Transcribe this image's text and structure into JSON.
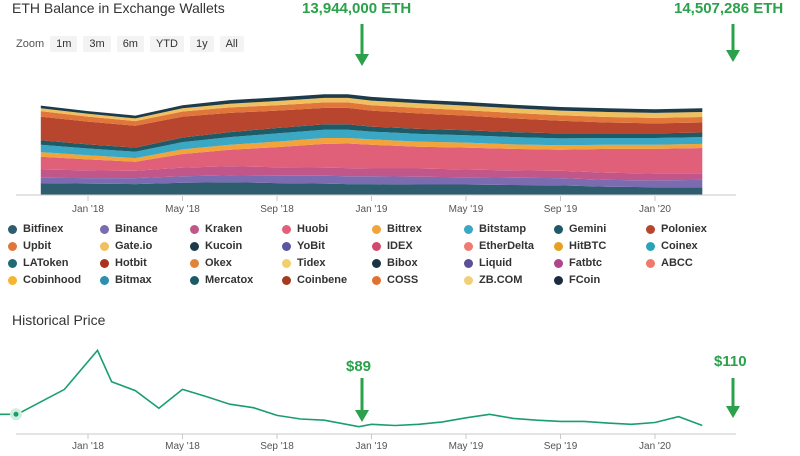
{
  "title": "ETH Balance in Exchange Wallets",
  "zoom": {
    "label": "Zoom",
    "options": [
      "1m",
      "3m",
      "6m",
      "YTD",
      "1y",
      "All"
    ]
  },
  "callouts": {
    "balance_low": "13,944,000 ETH",
    "balance_high": "14,507,286 ETH",
    "price_low": "$89",
    "price_high": "$110"
  },
  "colors": {
    "callout_green": "#2aa14a",
    "price_line": "#1a9e6e"
  },
  "legend": [
    {
      "name": "Bitfinex",
      "color": "#2e5d70"
    },
    {
      "name": "Binance",
      "color": "#7b6bb0"
    },
    {
      "name": "Kraken",
      "color": "#c0568a"
    },
    {
      "name": "Huobi",
      "color": "#e0607a"
    },
    {
      "name": "Bittrex",
      "color": "#f2a33a"
    },
    {
      "name": "Bitstamp",
      "color": "#3aa7c4"
    },
    {
      "name": "Gemini",
      "color": "#1f5b66"
    },
    {
      "name": "Poloniex",
      "color": "#b8462e"
    },
    {
      "name": "Upbit",
      "color": "#e0763a"
    },
    {
      "name": "Gate.io",
      "color": "#f0c060"
    },
    {
      "name": "Kucoin",
      "color": "#1d3b4a"
    },
    {
      "name": "YoBit",
      "color": "#5a56a0"
    },
    {
      "name": "IDEX",
      "color": "#d04a6a"
    },
    {
      "name": "EtherDelta",
      "color": "#ee7a70"
    },
    {
      "name": "HitBTC",
      "color": "#e8a020"
    },
    {
      "name": "Coinex",
      "color": "#2aa3b8"
    },
    {
      "name": "LAToken",
      "color": "#1f6b73"
    },
    {
      "name": "Hotbit",
      "color": "#a8361c"
    },
    {
      "name": "Okex",
      "color": "#e0843a"
    },
    {
      "name": "Tidex",
      "color": "#f2cf6a"
    },
    {
      "name": "Bibox",
      "color": "#1b3346"
    },
    {
      "name": "Liquid",
      "color": "#5b4f9a"
    },
    {
      "name": "Fatbtc",
      "color": "#b0468a"
    },
    {
      "name": "ABCC",
      "color": "#f07a6a"
    },
    {
      "name": "Cobinhood",
      "color": "#f5b52e"
    },
    {
      "name": "Bitmax",
      "color": "#2a8fb0"
    },
    {
      "name": "Mercatox",
      "color": "#1d5a68"
    },
    {
      "name": "Coinbene",
      "color": "#a43a22"
    },
    {
      "name": "COSS",
      "color": "#e4702e"
    },
    {
      "name": "ZB.COM",
      "color": "#f2d07a"
    },
    {
      "name": "FCoin",
      "color": "#1a2d40"
    }
  ],
  "history": {
    "title": "Historical Price"
  },
  "chart_data": [
    {
      "type": "area",
      "title": "ETH Balance in Exchange Wallets",
      "x_ticks": [
        "Jan '18",
        "May '18",
        "Sep '18",
        "Jan '19",
        "May '19",
        "Sep '19",
        "Jan '20"
      ],
      "x": [
        "2017-11",
        "2018-01",
        "2018-03",
        "2018-05",
        "2018-07",
        "2018-09",
        "2018-11",
        "2018-12",
        "2019-01",
        "2019-03",
        "2019-05",
        "2019-07",
        "2019-09",
        "2019-11",
        "2020-01",
        "2020-03"
      ],
      "series": [
        {
          "name": "Bitfinex",
          "values": [
            1.3,
            1.25,
            1.2,
            1.35,
            1.4,
            1.3,
            1.25,
            1.2,
            1.2,
            1.15,
            1.15,
            1.1,
            1.05,
            0.9,
            0.85,
            0.85
          ]
        },
        {
          "name": "Binance",
          "values": [
            0.6,
            0.6,
            0.65,
            0.7,
            0.75,
            0.8,
            0.85,
            0.85,
            0.85,
            0.85,
            0.8,
            0.8,
            0.8,
            0.75,
            0.75,
            0.8
          ]
        },
        {
          "name": "Kraken",
          "values": [
            0.9,
            0.85,
            0.8,
            0.95,
            1.0,
            0.95,
            0.9,
            0.9,
            0.85,
            0.9,
            0.85,
            0.8,
            0.8,
            0.8,
            0.75,
            0.7
          ]
        },
        {
          "name": "Huobi",
          "values": [
            1.4,
            1.2,
            1.0,
            1.5,
            1.8,
            2.2,
            2.6,
            2.7,
            2.6,
            2.4,
            2.4,
            2.35,
            2.3,
            2.6,
            2.7,
            2.8
          ]
        },
        {
          "name": "Bittrex",
          "values": [
            0.5,
            0.45,
            0.4,
            0.5,
            0.55,
            0.6,
            0.65,
            0.6,
            0.6,
            0.55,
            0.55,
            0.5,
            0.5,
            0.45,
            0.45,
            0.45
          ]
        },
        {
          "name": "Bitstamp",
          "values": [
            0.8,
            0.75,
            0.7,
            0.8,
            0.85,
            0.9,
            0.9,
            0.9,
            0.85,
            0.85,
            0.8,
            0.8,
            0.75,
            0.75,
            0.75,
            0.75
          ]
        },
        {
          "name": "Gemini",
          "values": [
            0.5,
            0.45,
            0.45,
            0.5,
            0.55,
            0.6,
            0.6,
            0.6,
            0.55,
            0.55,
            0.55,
            0.55,
            0.55,
            0.5,
            0.5,
            0.5
          ]
        },
        {
          "name": "Poloniex",
          "values": [
            2.6,
            2.5,
            2.4,
            2.3,
            2.1,
            1.9,
            1.8,
            1.8,
            1.75,
            1.7,
            1.6,
            1.5,
            1.4,
            1.2,
            1.1,
            1.1
          ]
        },
        {
          "name": "Upbit",
          "values": [
            0.6,
            0.55,
            0.5,
            0.55,
            0.6,
            0.6,
            0.6,
            0.6,
            0.6,
            0.6,
            0.6,
            0.6,
            0.6,
            0.6,
            0.6,
            0.6
          ]
        },
        {
          "name": "Gate.io",
          "values": [
            0.3,
            0.3,
            0.3,
            0.35,
            0.4,
            0.45,
            0.5,
            0.5,
            0.5,
            0.5,
            0.5,
            0.5,
            0.5,
            0.55,
            0.55,
            0.55
          ]
        },
        {
          "name": "Kucoin",
          "values": [
            0.3,
            0.3,
            0.3,
            0.35,
            0.4,
            0.4,
            0.4,
            0.4,
            0.4,
            0.4,
            0.4,
            0.4,
            0.4,
            0.4,
            0.4,
            0.4
          ]
        }
      ]
    },
    {
      "type": "line",
      "title": "Historical Price",
      "x_ticks": [
        "Jan '18",
        "May '18",
        "Sep '18",
        "Jan '19",
        "May '19",
        "Sep '19",
        "Jan '20"
      ],
      "x": [
        "2017-08",
        "2017-10",
        "2017-12",
        "2018-01-13",
        "2018-02",
        "2018-03",
        "2018-04",
        "2018-05",
        "2018-06",
        "2018-07",
        "2018-08",
        "2018-09",
        "2018-10",
        "2018-11",
        "2018-12-15",
        "2019-01",
        "2019-02",
        "2019-03",
        "2019-04",
        "2019-05",
        "2019-06",
        "2019-07",
        "2019-08",
        "2019-09",
        "2019-10",
        "2019-11",
        "2019-12",
        "2020-01",
        "2020-02",
        "2020-03"
      ],
      "series": [
        {
          "name": "",
          "values": [
            300,
            300,
            720,
            1380,
            850,
            700,
            400,
            720,
            600,
            470,
            410,
            280,
            220,
            200,
            89,
            130,
            110,
            130,
            170,
            240,
            300,
            230,
            200,
            180,
            180,
            150,
            130,
            160,
            260,
            110
          ]
        }
      ]
    }
  ]
}
